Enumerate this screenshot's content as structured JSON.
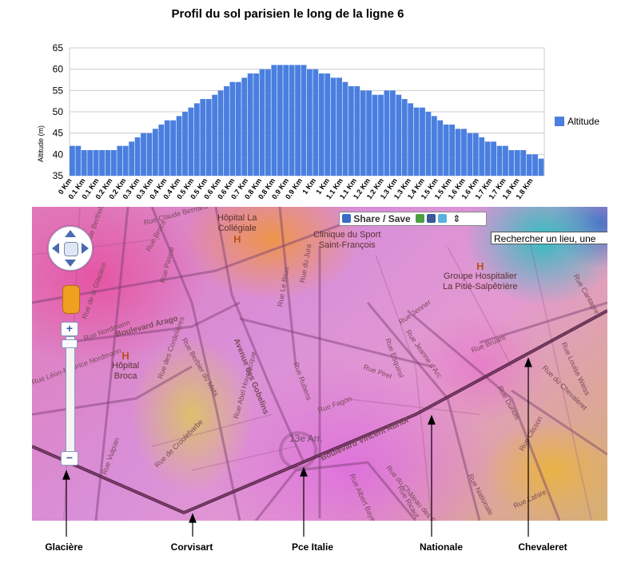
{
  "chart_data": {
    "type": "bar",
    "title": "Profil du sol parisien le long de la ligne 6",
    "ylabel": "Altitude (m)",
    "xlabel": "",
    "ylim": [
      35,
      65
    ],
    "yticks": [
      35,
      40,
      45,
      50,
      55,
      60,
      65
    ],
    "grid": true,
    "legend_position": "right",
    "series": [
      {
        "name": "Altitude",
        "color": "#4a7fe0",
        "values": [
          42,
          42,
          41,
          41,
          41,
          41,
          41,
          41,
          42,
          42,
          43,
          44,
          45,
          45,
          46,
          47,
          48,
          48,
          49,
          50,
          51,
          52,
          53,
          53,
          54,
          55,
          56,
          57,
          57,
          58,
          59,
          59,
          60,
          60,
          61,
          61,
          61,
          61,
          61,
          61,
          60,
          60,
          59,
          59,
          58,
          58,
          57,
          56,
          56,
          55,
          55,
          54,
          54,
          55,
          55,
          54,
          53,
          52,
          51,
          51,
          50,
          49,
          48,
          47,
          47,
          46,
          46,
          45,
          45,
          44,
          43,
          43,
          42,
          42,
          41,
          41,
          41,
          40,
          40,
          39
        ]
      }
    ],
    "x_tick_labels": [
      "0 Km",
      "0.1 Km",
      "0.1 Km",
      "0.2 Km",
      "0.2 Km",
      "0.3 Km",
      "0.3 Km",
      "0.4 Km",
      "0.4 Km",
      "0.5 Km",
      "0.5 Km",
      "0.6 Km",
      "0.6 Km",
      "0.7 Km",
      "0.8 Km",
      "0.8 Km",
      "0.9 Km",
      "0.9 Km",
      "1 Km",
      "1 Km",
      "1.1 Km",
      "1.1 Km",
      "1.2 Km",
      "1.2 Km",
      "1.3 Km",
      "1.3 Km",
      "1.4 Km",
      "1.5 Km",
      "1.5 Km",
      "1.6 Km",
      "1.6 Km",
      "1.7 Km",
      "1.7 Km",
      "1.8 Km",
      "1.8 Km"
    ]
  },
  "map": {
    "share_label": "Share / Save",
    "search_placeholder": "Rechercher un lieu, une",
    "zoom_in": "+",
    "zoom_out": "−",
    "pois": [
      {
        "name": "Hôpital La Collégiale",
        "line1": "Hôpital La",
        "line2": "Collégiale"
      },
      {
        "name": "Clinique du Sport Saint-François",
        "line1": "Clinique du Sport",
        "line2": "Saint-François"
      },
      {
        "name": "Groupe Hospitalier La Pitié-Salpêtrière",
        "line1": "Groupe Hospitalier",
        "line2": "La Pitié-Salpêtrière"
      },
      {
        "name": "Hôpital Broca",
        "line1": "Hôpital",
        "line2": "Broca"
      }
    ],
    "hospital_marker": "H",
    "arrondissement": "13e Arr.",
    "streets": [
      "Boulevard Arago",
      "Avenue des Gobelins",
      "Rue Broca",
      "Rue Pascal",
      "Rue Berbier du Mets",
      "Rue Le Brun",
      "Rue du Jura",
      "Rue Rubens",
      "Rue Pirel",
      "Rue Fagon",
      "Boulevard Vincent Auriol",
      "Rue Jenner",
      "Rue Jeanne d'Arc",
      "Rue Esquirol",
      "Rue Bruant",
      "Rue Dunois",
      "Rue du Chevaleret",
      "Rue de Croulebarbe",
      "Rue des Cordelières",
      "Rue Vulpian",
      "Rue Abel Hovelacque",
      "Rue Albert Bayet",
      "Rue du Château des Rentiers",
      "Rue Ricaut",
      "Rue Nationale",
      "Rue Louise Weiss",
      "Rue Cantagrel",
      "Rue Lahire",
      "Rue Clisson",
      "Rue Nordmann",
      "Rue de la Glacière",
      "Rue Berthollet",
      "Rue Léon-Maurice Nordmann",
      "Rue Claude Bernard"
    ]
  },
  "stations": [
    "Glacière",
    "Corvisart",
    "Pce Italie",
    "Nationale",
    "Chevaleret"
  ]
}
